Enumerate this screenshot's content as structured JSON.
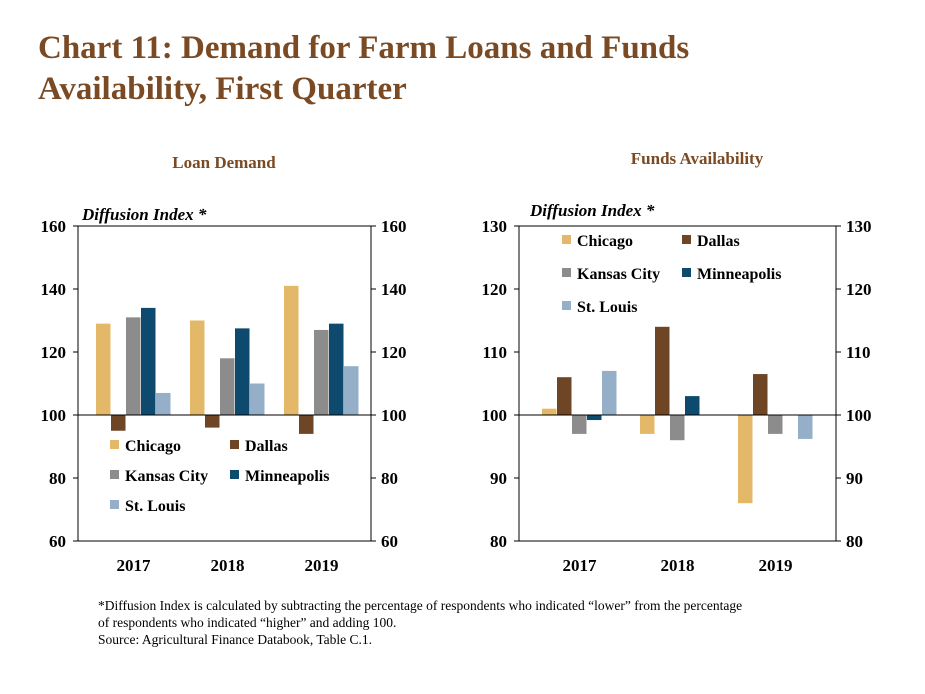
{
  "title_line1": "Chart 11: Demand for Farm Loans and Funds",
  "title_line2": "Availability, First Quarter",
  "footnote_line1": "*Diffusion Index is calculated by subtracting the percentage of respondents who indicated “lower” from the percentage",
  "footnote_line2": "of respondents who indicated “higher” and adding 100.",
  "source": "Source: Agricultural Finance Databook, Table C.1.",
  "colors": {
    "title": "#7a4a24",
    "Chicago": "#e3b868",
    "Dallas": "#6e4525",
    "Kansas City": "#8c8c8c",
    "Minneapolis": "#0d4a6e",
    "St. Louis": "#95afc9"
  },
  "chart_data": [
    {
      "type": "bar",
      "title": "Loan Demand",
      "ylabel": "Diffusion Index *",
      "categories": [
        "2017",
        "2018",
        "2019"
      ],
      "ylim": [
        60,
        160
      ],
      "yticks": [
        60,
        80,
        100,
        120,
        140,
        160
      ],
      "baseline": 100,
      "legend_position": "bottom-left",
      "series": [
        {
          "name": "Chicago",
          "values": [
            129,
            130,
            141
          ]
        },
        {
          "name": "Dallas",
          "values": [
            95,
            96,
            94
          ]
        },
        {
          "name": "Kansas City",
          "values": [
            131,
            118,
            127
          ]
        },
        {
          "name": "Minneapolis",
          "values": [
            134,
            127.5,
            129
          ]
        },
        {
          "name": "St. Louis",
          "values": [
            107,
            110,
            115.5
          ]
        }
      ]
    },
    {
      "type": "bar",
      "title": "Funds Availability",
      "ylabel": "Diffusion Index *",
      "categories": [
        "2017",
        "2018",
        "2019"
      ],
      "ylim": [
        80,
        130
      ],
      "yticks": [
        80,
        90,
        100,
        110,
        120,
        130
      ],
      "baseline": 100,
      "legend_position": "top-left",
      "series": [
        {
          "name": "Chicago",
          "values": [
            101,
            97,
            86
          ]
        },
        {
          "name": "Dallas",
          "values": [
            106,
            114,
            106.5
          ]
        },
        {
          "name": "Kansas City",
          "values": [
            97,
            96,
            97
          ]
        },
        {
          "name": "Minneapolis",
          "values": [
            99.2,
            103,
            100
          ]
        },
        {
          "name": "St. Louis",
          "values": [
            107,
            100,
            96.2
          ]
        }
      ]
    }
  ]
}
